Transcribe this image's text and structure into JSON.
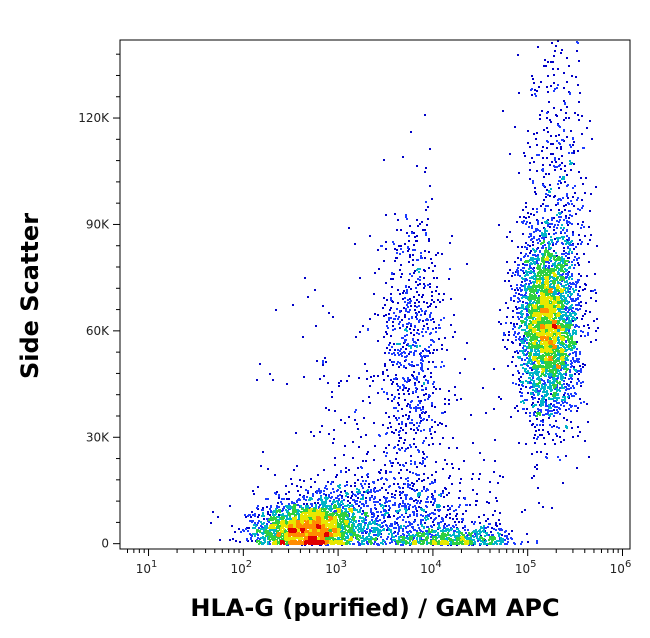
{
  "chart_data": {
    "type": "scatter",
    "style": "density-dot-plot",
    "xlabel": "HLA-G (purified) / GAM APC",
    "ylabel": "Side Scatter",
    "x_scale": "log",
    "xlim": [
      5,
      1200000
    ],
    "ylim": [
      -1500,
      142000
    ],
    "x_ticks": [
      {
        "value": 10,
        "base": "10",
        "exp": "1"
      },
      {
        "value": 100,
        "base": "10",
        "exp": "2"
      },
      {
        "value": 1000,
        "base": "10",
        "exp": "3"
      },
      {
        "value": 10000,
        "base": "10",
        "exp": "4"
      },
      {
        "value": 100000,
        "base": "10",
        "exp": "5"
      },
      {
        "value": 1000000,
        "base": "10",
        "exp": "6"
      }
    ],
    "y_ticks": [
      {
        "value": 0,
        "label": "0"
      },
      {
        "value": 30000,
        "label": "30K"
      },
      {
        "value": 60000,
        "label": "60K"
      },
      {
        "value": 90000,
        "label": "90K"
      },
      {
        "value": 120000,
        "label": "120K"
      }
    ],
    "density_colors": [
      "#0000c8",
      "#1c3cff",
      "#00b4c8",
      "#30d040",
      "#e8e800",
      "#ff8c00",
      "#e00000"
    ],
    "populations": [
      {
        "x": 450,
        "y": 4500,
        "x_spread_decades": 0.25,
        "y_spread": 3500,
        "share": 0.22
      },
      {
        "x": 900,
        "y": 6500,
        "x_spread_decades": 0.4,
        "y_spread": 5500,
        "share": 0.1
      },
      {
        "x": 15000,
        "y": 1500,
        "x_spread_decades": 0.35,
        "y_spread": 1800,
        "share": 0.06
      },
      {
        "x": 6000,
        "y": 8000,
        "x_spread_decades": 0.45,
        "y_spread": 7000,
        "share": 0.06
      },
      {
        "x": 6000,
        "y": 55000,
        "x_spread_decades": 0.18,
        "y_spread": 20000,
        "share": 0.08
      },
      {
        "x": 160000,
        "y": 62000,
        "x_spread_decades": 0.16,
        "y_spread": 13000,
        "share": 0.4
      },
      {
        "x": 200000,
        "y": 100000,
        "x_spread_decades": 0.18,
        "y_spread": 22000,
        "share": 0.05
      },
      {
        "x": 3000,
        "y": 30000,
        "x_spread_decades": 0.6,
        "y_spread": 25000,
        "share": 0.03
      }
    ],
    "total_events": 9000
  }
}
